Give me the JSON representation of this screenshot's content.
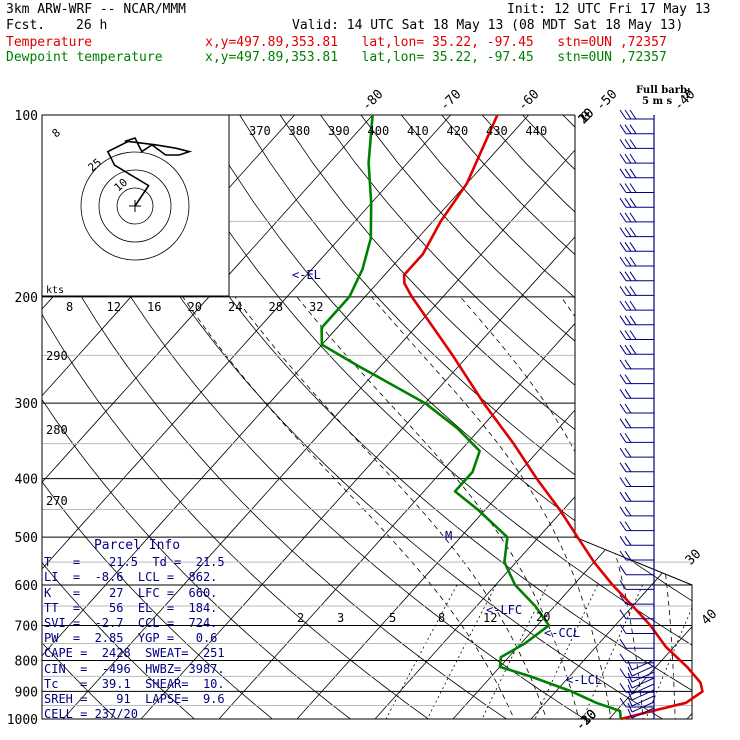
{
  "header": {
    "model": "3km ARW-WRF -- NCAR/MMM",
    "init": "Init: 12 UTC Fri 17 May 13",
    "fcst_label": "Fcst.",
    "fcst_hours": "26 h",
    "valid": "Valid: 14 UTC Sat 18 May 13 (08 MDT Sat 18 May 13)",
    "legend": [
      {
        "name": "Temperature",
        "info": "x,y=497.89,353.81   lat,lon= 35.22, -97.45   stn=0UN ,72357",
        "color": "#e00000"
      },
      {
        "name": "Dewpoint temperature",
        "info": "x,y=497.89,353.81   lat,lon= 35.22, -97.45   stn=0UN ,72357",
        "color": "#008000"
      }
    ]
  },
  "parcel_info": {
    "title": "Parcel Info",
    "rows": [
      "T   =    21.5  Td =  21.5",
      "LI  =  -8.6  LCL =  862.",
      "K   =    27  LFC =  660.",
      "TT  =    56  EL  =  184.",
      "SVI =  -2.7  CCL =  724.",
      "PW  =  2.85  YGP =   0.6",
      "CAPE =  2428  SWEAT=  251",
      "CIN  =  -496  HWBZ= 3987.",
      "Tc   =  39.1  SHEAR=  10.",
      "SREH =    91  LAPSE=  9.6",
      "CELL = 237/20"
    ]
  },
  "chart_data": {
    "type": "line",
    "diagram": "skew-T log-P",
    "pressure_levels": [
      100,
      200,
      300,
      400,
      500,
      600,
      700,
      800,
      900,
      1000
    ],
    "pressure_labels": [
      "100",
      "200",
      "300",
      "400",
      "500",
      "600",
      "700",
      "800",
      "900",
      "1000"
    ],
    "temperature_ticks": [
      "-80",
      "-70",
      "-60",
      "-50",
      "-40",
      "-30",
      "-20",
      "-10",
      "0",
      "10",
      "20",
      "30",
      "40"
    ],
    "theta_labels": [
      "370",
      "380",
      "390",
      "400",
      "410",
      "420",
      "430",
      "440"
    ],
    "theta_left_labels": [
      "290",
      "280",
      "270"
    ],
    "mixing_ratio_labels": [
      "2",
      "3",
      "5",
      "8",
      "12",
      "20"
    ],
    "hodo_speed_labels": [
      "8",
      "12",
      "16",
      "20",
      "24",
      "28",
      "32"
    ],
    "hodo_unit": "kts",
    "hodo_ring_labels": [
      "25",
      "10"
    ],
    "hodo_corner_label": "8",
    "series": [
      {
        "name": "Temperature",
        "color": "#e00000",
        "points": [
          [
            1000,
            21.5
          ],
          [
            970,
            24.6
          ],
          [
            940,
            28.0
          ],
          [
            900,
            28.8
          ],
          [
            870,
            27.5
          ],
          [
            820,
            24.0
          ],
          [
            760,
            19.0
          ],
          [
            700,
            14.5
          ],
          [
            650,
            10.0
          ],
          [
            600,
            5.0
          ],
          [
            550,
            0.0
          ],
          [
            500,
            -5.0
          ],
          [
            450,
            -10.5
          ],
          [
            400,
            -17.0
          ],
          [
            350,
            -24.0
          ],
          [
            300,
            -32.5
          ],
          [
            250,
            -42.0
          ],
          [
            200,
            -54.0
          ],
          [
            190,
            -56.5
          ],
          [
            184,
            -57.5
          ],
          [
            170,
            -57.5
          ],
          [
            150,
            -59.0
          ],
          [
            130,
            -60.0
          ],
          [
            100,
            -64.0
          ]
        ]
      },
      {
        "name": "Dewpoint temperature",
        "color": "#008000",
        "points": [
          [
            1000,
            21.5
          ],
          [
            970,
            20.5
          ],
          [
            940,
            16.5
          ],
          [
            900,
            12.0
          ],
          [
            850,
            5.0
          ],
          [
            820,
            0.0
          ],
          [
            790,
            -1.0
          ],
          [
            750,
            0.5
          ],
          [
            700,
            1.5
          ],
          [
            650,
            -2.5
          ],
          [
            600,
            -7.5
          ],
          [
            550,
            -11.5
          ],
          [
            500,
            -14.0
          ],
          [
            450,
            -21.0
          ],
          [
            420,
            -26.0
          ],
          [
            390,
            -26.0
          ],
          [
            360,
            -27.5
          ],
          [
            330,
            -33.0
          ],
          [
            300,
            -40.0
          ],
          [
            260,
            -53.0
          ],
          [
            240,
            -60.0
          ],
          [
            225,
            -62.0
          ],
          [
            200,
            -62.0
          ],
          [
            180,
            -63.5
          ],
          [
            160,
            -66.0
          ],
          [
            140,
            -70.0
          ],
          [
            120,
            -75.0
          ],
          [
            100,
            -80.0
          ]
        ]
      }
    ],
    "annotations": [
      {
        "label": "<-EL",
        "pressure": 184
      },
      {
        "label": "<-LFC",
        "pressure": 660
      },
      {
        "label": "<-CCL",
        "pressure": 724
      },
      {
        "label": "<-LCL",
        "pressure": 862
      },
      {
        "label": "M",
        "pressure": 500
      }
    ],
    "wind_barb_legend": {
      "title": "Full barb:",
      "value": "5 m s",
      "exp": "-1"
    },
    "hodograph": {
      "path_knots": [
        [
          0,
          0
        ],
        [
          4,
          6
        ],
        [
          -6,
          12
        ],
        [
          -8,
          16
        ],
        [
          -2,
          19
        ],
        [
          6,
          18
        ],
        [
          12,
          17
        ],
        [
          16,
          16
        ],
        [
          13,
          15
        ],
        [
          9,
          15
        ],
        [
          5,
          18
        ],
        [
          2,
          16
        ],
        [
          0,
          20
        ],
        [
          -3,
          19
        ]
      ]
    }
  }
}
